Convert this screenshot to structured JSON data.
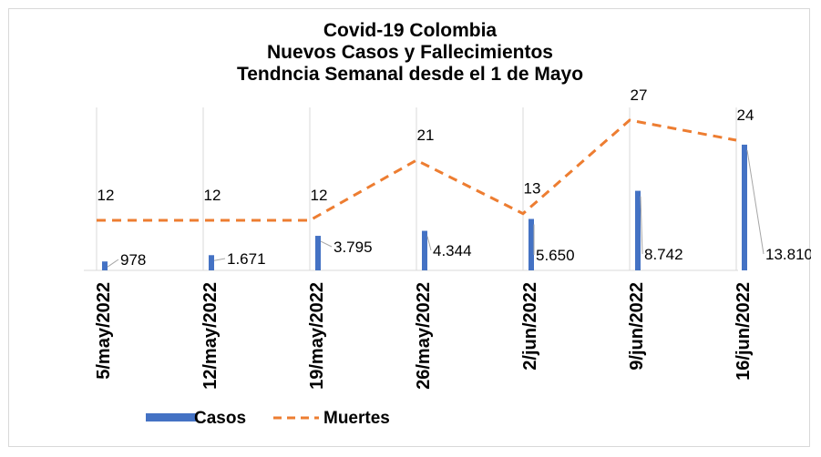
{
  "chart_data": {
    "type": "bar+line",
    "title": [
      "Covid-19 Colombia",
      "Nuevos Casos y Fallecimientos",
      "Tendncia Semanal desde el 1 de Mayo"
    ],
    "categories": [
      "5/may/2022",
      "12/may/2022",
      "19/may/2022",
      "26/may/2022",
      "2/jun/2022",
      "9/jun/2022",
      "16/jun/2022"
    ],
    "series": [
      {
        "name": "Casos",
        "type": "bar",
        "color": "#4472c4",
        "values": [
          978,
          1671,
          3795,
          4344,
          5650,
          8742,
          13810
        ],
        "labels": [
          "978",
          "1.671",
          "3.795",
          "4.344",
          "5.650",
          "8.742",
          "13.810"
        ]
      },
      {
        "name": "Muertes",
        "type": "line",
        "style": "dashed",
        "color": "#ed7d31",
        "values": [
          12,
          12,
          12,
          21,
          13,
          27,
          24
        ],
        "labels": [
          "12",
          "12",
          "12",
          "21",
          "13",
          "27",
          "24"
        ]
      }
    ],
    "grid": "vertical",
    "legend": "bottom-left"
  }
}
